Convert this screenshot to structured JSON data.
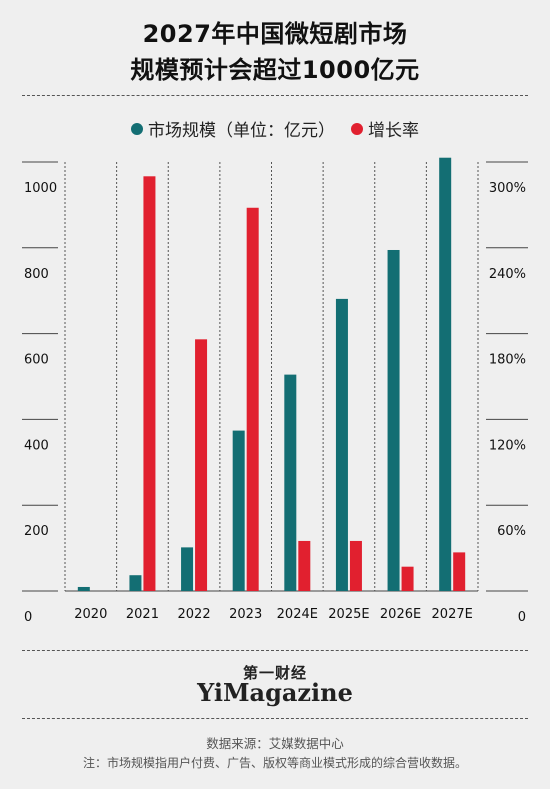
{
  "title": {
    "line1": "2027年中国微短剧市场",
    "line2": "规模预计会超过1000亿元"
  },
  "colors": {
    "market_size": "#136e73",
    "growth_rate": "#e1202f",
    "background": "#efefef"
  },
  "chart_data": {
    "type": "bar",
    "categories": [
      "2020",
      "2021",
      "2022",
      "2023",
      "2024E",
      "2025E",
      "2026E",
      "2027E"
    ],
    "series": [
      {
        "name": "市场规模（单位：亿元）",
        "axis": "left",
        "values": [
          9.4,
          36.8,
          101.7,
          373.9,
          504.4,
          680.9,
          794.9,
          1010
        ]
      },
      {
        "name": "增长率",
        "axis": "right",
        "values": [
          null,
          290,
          176,
          268,
          35,
          35,
          17,
          27
        ]
      }
    ],
    "left_axis": {
      "ticks": [
        "0",
        "200",
        "400",
        "600",
        "800",
        "1000"
      ],
      "ylim": [
        0,
        1000
      ]
    },
    "right_axis": {
      "ticks": [
        "0",
        "60%",
        "120%",
        "180%",
        "240%",
        "300%"
      ],
      "ylim": [
        0,
        300
      ]
    },
    "legend_position": "top-center",
    "grid": "vertical-dashed"
  },
  "footer": {
    "brand_cn": "第一财经",
    "brand_en": "YiMagazine",
    "source": "数据来源：艾媒数据中心",
    "note": "注：市场规模指用户付费、广告、版权等商业模式形成的综合营收数据。"
  }
}
